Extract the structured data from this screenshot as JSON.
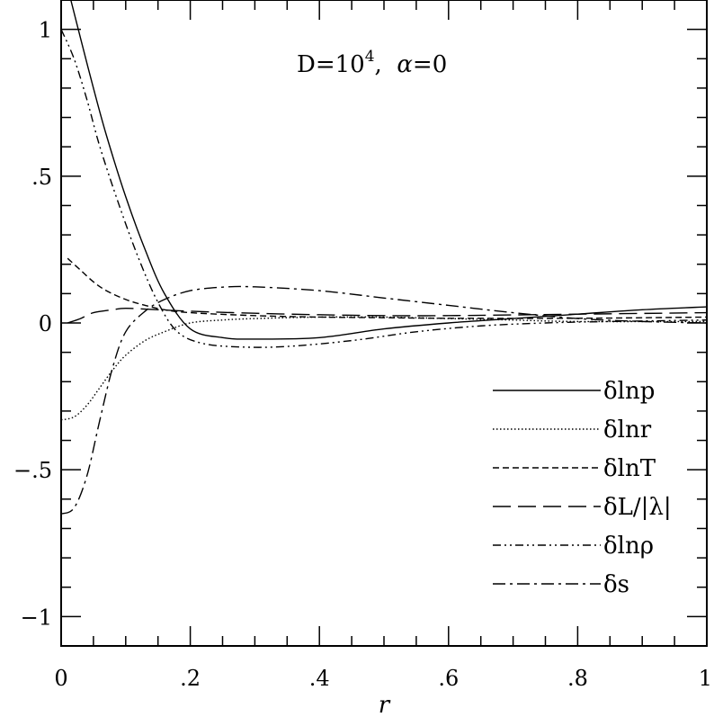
{
  "chart_data": {
    "type": "line",
    "annotation_parts": [
      "D=10",
      "4",
      ",  ",
      "α",
      "=0"
    ],
    "xlabel": "r",
    "ylabel": "",
    "xlim": [
      0,
      1
    ],
    "ylim": [
      -1.1,
      1.1
    ],
    "x_ticks": [
      0,
      0.2,
      0.4,
      0.6,
      0.8,
      1
    ],
    "x_tick_labels": [
      "0",
      ".2",
      ".4",
      ".6",
      ".8",
      "1"
    ],
    "y_ticks": [
      -1,
      -0.5,
      0,
      0.5,
      1
    ],
    "y_tick_labels": [
      "−1",
      "−.5",
      "0",
      ".5",
      "1"
    ],
    "grid": false,
    "legend_position": "bottom-right",
    "series": [
      {
        "name": "δlnp",
        "line_style": "solid",
        "points": [
          [
            0.015,
            1.1
          ],
          [
            0.03,
            0.97
          ],
          [
            0.05,
            0.8
          ],
          [
            0.07,
            0.64
          ],
          [
            0.1,
            0.43
          ],
          [
            0.13,
            0.25
          ],
          [
            0.16,
            0.1
          ],
          [
            0.2,
            -0.02
          ],
          [
            0.25,
            -0.05
          ],
          [
            0.3,
            -0.055
          ],
          [
            0.4,
            -0.05
          ],
          [
            0.5,
            -0.02
          ],
          [
            0.6,
            0.0
          ],
          [
            0.7,
            0.015
          ],
          [
            0.8,
            0.03
          ],
          [
            0.9,
            0.045
          ],
          [
            1.0,
            0.055
          ]
        ]
      },
      {
        "name": "δlnr",
        "line_style": "dotted",
        "points": [
          [
            0.0,
            -0.33
          ],
          [
            0.02,
            -0.32
          ],
          [
            0.04,
            -0.28
          ],
          [
            0.06,
            -0.22
          ],
          [
            0.08,
            -0.16
          ],
          [
            0.1,
            -0.11
          ],
          [
            0.13,
            -0.06
          ],
          [
            0.16,
            -0.03
          ],
          [
            0.2,
            0.0
          ],
          [
            0.25,
            0.01
          ],
          [
            0.3,
            0.015
          ],
          [
            0.4,
            0.02
          ],
          [
            0.5,
            0.02
          ],
          [
            0.6,
            0.015
          ],
          [
            0.7,
            0.01
          ],
          [
            0.8,
            0.005
          ],
          [
            1.0,
            0.005
          ]
        ]
      },
      {
        "name": "δlnT",
        "line_style": "short-dashed",
        "points": [
          [
            0.01,
            0.22
          ],
          [
            0.03,
            0.18
          ],
          [
            0.05,
            0.14
          ],
          [
            0.07,
            0.11
          ],
          [
            0.1,
            0.08
          ],
          [
            0.13,
            0.06
          ],
          [
            0.16,
            0.045
          ],
          [
            0.2,
            0.035
          ],
          [
            0.3,
            0.025
          ],
          [
            0.4,
            0.02
          ],
          [
            0.5,
            0.018
          ],
          [
            0.6,
            0.016
          ],
          [
            0.8,
            0.016
          ],
          [
            1.0,
            0.02
          ]
        ]
      },
      {
        "name": "δL/|λ|",
        "line_style": "long-dashed",
        "points": [
          [
            0.01,
            0.0
          ],
          [
            0.03,
            0.015
          ],
          [
            0.05,
            0.035
          ],
          [
            0.08,
            0.045
          ],
          [
            0.1,
            0.05
          ],
          [
            0.15,
            0.045
          ],
          [
            0.2,
            0.04
          ],
          [
            0.3,
            0.033
          ],
          [
            0.4,
            0.028
          ],
          [
            0.5,
            0.025
          ],
          [
            0.6,
            0.025
          ],
          [
            0.8,
            0.03
          ],
          [
            1.0,
            0.035
          ]
        ]
      },
      {
        "name": "δlnρ",
        "line_style": "dash-dot-dot",
        "points": [
          [
            0.0,
            1.0
          ],
          [
            0.02,
            0.9
          ],
          [
            0.04,
            0.76
          ],
          [
            0.06,
            0.6
          ],
          [
            0.09,
            0.4
          ],
          [
            0.12,
            0.22
          ],
          [
            0.15,
            0.07
          ],
          [
            0.18,
            -0.03
          ],
          [
            0.22,
            -0.07
          ],
          [
            0.28,
            -0.082
          ],
          [
            0.35,
            -0.08
          ],
          [
            0.45,
            -0.06
          ],
          [
            0.55,
            -0.03
          ],
          [
            0.65,
            -0.01
          ],
          [
            0.75,
            0.0
          ],
          [
            0.85,
            0.005
          ],
          [
            1.0,
            0.01
          ]
        ]
      },
      {
        "name": "δs",
        "line_style": "dash-dot",
        "points": [
          [
            0.0,
            -0.65
          ],
          [
            0.02,
            -0.63
          ],
          [
            0.04,
            -0.52
          ],
          [
            0.06,
            -0.33
          ],
          [
            0.08,
            -0.15
          ],
          [
            0.1,
            -0.03
          ],
          [
            0.13,
            0.04
          ],
          [
            0.16,
            0.08
          ],
          [
            0.2,
            0.11
          ],
          [
            0.25,
            0.122
          ],
          [
            0.3,
            0.123
          ],
          [
            0.4,
            0.11
          ],
          [
            0.5,
            0.085
          ],
          [
            0.6,
            0.06
          ],
          [
            0.7,
            0.035
          ],
          [
            0.8,
            0.015
          ],
          [
            0.9,
            0.005
          ],
          [
            1.0,
            0.0
          ]
        ]
      }
    ]
  }
}
